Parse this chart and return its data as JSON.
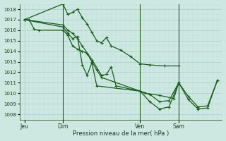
{
  "bg_color": "#cce8e0",
  "grid_major_color": "#aacccc",
  "grid_minor_color": "#bbdddd",
  "line_color": "#1a5c1a",
  "xlabel": "Pression niveau de la mer( hPa )",
  "ylim": [
    1007.5,
    1018.5
  ],
  "yticks": [
    1008,
    1009,
    1010,
    1011,
    1012,
    1013,
    1014,
    1015,
    1016,
    1017,
    1018
  ],
  "xtick_labels": [
    "Jeu",
    "Dim",
    "Ven",
    "Sam"
  ],
  "xtick_positions": [
    0,
    16,
    48,
    64
  ],
  "vline_positions": [
    16,
    48,
    64
  ],
  "xlim": [
    -2,
    82
  ],
  "series": [
    [
      0,
      1017.0,
      2,
      1017.0,
      4,
      1016.1,
      6,
      1016.0,
      16,
      1016.0,
      18,
      1015.5,
      20,
      1014.5,
      22,
      1014.2,
      24,
      1014.0,
      26,
      1013.8,
      28,
      1013.0,
      30,
      1012.2,
      32,
      1011.5,
      48,
      1010.2,
      50,
      1010.0,
      56,
      1009.8,
      62,
      1009.5,
      64,
      1011.0
    ],
    [
      0,
      1017.0,
      16,
      1018.5,
      18,
      1017.5,
      20,
      1017.7,
      22,
      1018.0,
      24,
      1017.2,
      26,
      1016.6,
      28,
      1015.8,
      30,
      1015.0,
      32,
      1014.8,
      34,
      1015.3,
      36,
      1014.5,
      40,
      1014.1,
      44,
      1013.5,
      48,
      1012.8,
      52,
      1012.7,
      58,
      1012.6,
      64,
      1012.6
    ],
    [
      0,
      1017.0,
      16,
      1016.5,
      18,
      1016.0,
      20,
      1015.7,
      22,
      1015.2,
      24,
      1014.5,
      28,
      1013.2,
      32,
      1011.7,
      34,
      1011.8,
      36,
      1012.5,
      38,
      1010.7,
      48,
      1010.2,
      52,
      1009.9,
      56,
      1009.2,
      60,
      1009.3,
      64,
      1011.0,
      68,
      1009.4,
      72,
      1008.5,
      76,
      1008.6,
      80,
      1011.2
    ],
    [
      0,
      1017.0,
      16,
      1016.3,
      18,
      1015.7,
      20,
      1015.2,
      22,
      1015.4,
      24,
      1012.7,
      26,
      1011.7,
      28,
      1012.9,
      30,
      1010.7,
      48,
      1010.2,
      52,
      1009.2,
      56,
      1008.5,
      60,
      1008.7,
      64,
      1011.0,
      68,
      1009.7,
      72,
      1008.7,
      76,
      1008.8,
      80,
      1011.2
    ]
  ]
}
